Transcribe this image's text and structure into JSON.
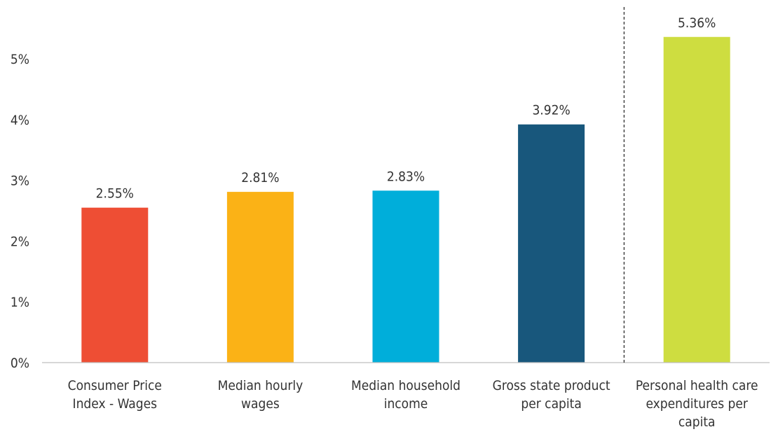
{
  "chart_data": {
    "type": "bar",
    "categories": [
      [
        "Consumer Price",
        "Index - Wages"
      ],
      [
        "Median hourly",
        "wages"
      ],
      [
        "Median household",
        "income"
      ],
      [
        "Gross state product",
        "per capita"
      ],
      [
        "Personal health care",
        "expenditures per",
        "capita"
      ]
    ],
    "values": [
      2.55,
      2.81,
      2.83,
      3.92,
      5.36
    ],
    "value_labels": [
      "2.55%",
      "2.81%",
      "2.83%",
      "3.92%",
      "5.36%"
    ],
    "colors": [
      "#EE4E34",
      "#FBB216",
      "#00AEDA",
      "#18577C",
      "#CEDD40"
    ],
    "yticks": [
      0,
      1,
      2,
      3,
      4,
      5
    ],
    "ytick_labels": [
      "0%",
      "1%",
      "2%",
      "3%",
      "4%",
      "5%"
    ],
    "ylim": [
      0,
      5.8
    ],
    "grid": false,
    "separator_before_index": 4
  }
}
